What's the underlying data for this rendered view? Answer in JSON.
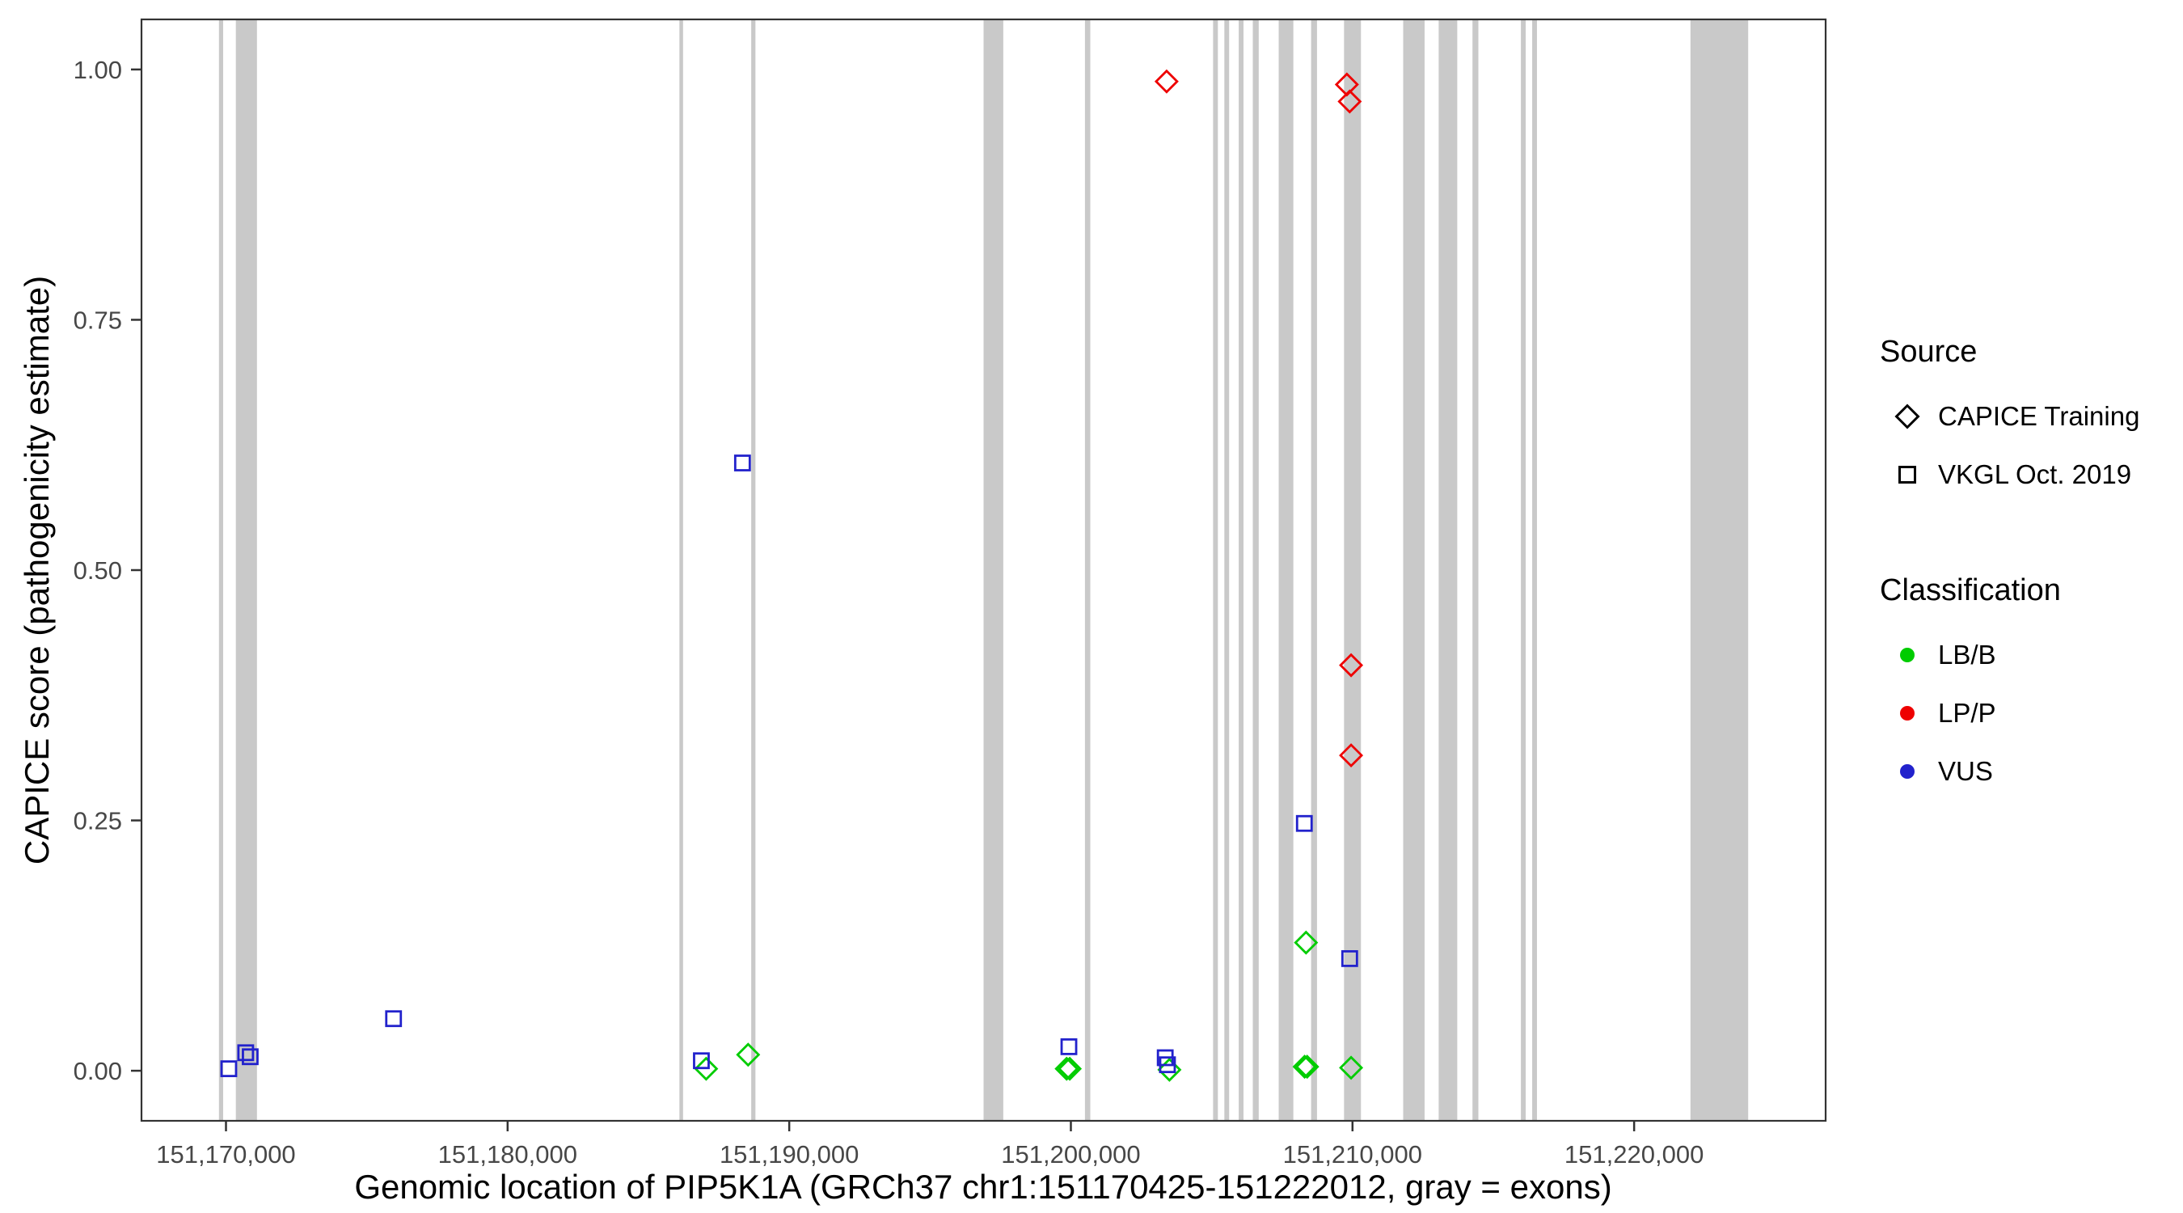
{
  "colors": {
    "LB/B": "#00CC00",
    "LP/P": "#EE0000",
    "VUS": "#2222CC",
    "exon": "#C9C9C9",
    "panel_border": "#333333",
    "tick": "#333333"
  },
  "legend": {
    "source": {
      "title": "Source",
      "items": [
        {
          "label": "CAPICE Training",
          "shape": "diamond"
        },
        {
          "label": "VKGL Oct. 2019",
          "shape": "square"
        }
      ]
    },
    "classification": {
      "title": "Classification",
      "items": [
        {
          "label": "LB/B",
          "color_key": "LB/B"
        },
        {
          "label": "LP/P",
          "color_key": "LP/P"
        },
        {
          "label": "VUS",
          "color_key": "VUS"
        }
      ]
    }
  },
  "chart_data": {
    "type": "scatter",
    "title": "",
    "xlabel": "Genomic location of PIP5K1A (GRCh37 chr1:151170425-151222012, gray = exons)",
    "ylabel": "CAPICE score (pathogenicity estimate)",
    "xlim": [
      151167000,
      151226800
    ],
    "ylim": [
      -0.05,
      1.05
    ],
    "x_ticks": [
      151170000,
      151180000,
      151190000,
      151200000,
      151210000,
      151220000
    ],
    "x_tick_labels": [
      "151,170,000",
      "151,180,000",
      "151,190,000",
      "151,200,000",
      "151,210,000",
      "151,220,000"
    ],
    "y_ticks": [
      0.0,
      0.25,
      0.5,
      0.75,
      1.0
    ],
    "y_tick_labels": [
      "0.00",
      "0.25",
      "0.50",
      "0.75",
      "1.00"
    ],
    "grid": false,
    "legend_position": "right",
    "exons": [
      [
        151169750,
        151169900
      ],
      [
        151170350,
        151171100
      ],
      [
        151186100,
        151186230
      ],
      [
        151188650,
        151188800
      ],
      [
        151196900,
        151197600
      ],
      [
        151200500,
        151200690
      ],
      [
        151205050,
        151205220
      ],
      [
        151205450,
        151205620
      ],
      [
        151205960,
        151206130
      ],
      [
        151206460,
        151206670
      ],
      [
        151207380,
        151207900
      ],
      [
        151208530,
        151208740
      ],
      [
        151209700,
        151210300
      ],
      [
        151211800,
        151212560
      ],
      [
        151213060,
        151213720
      ],
      [
        151214260,
        151214470
      ],
      [
        151215980,
        151216150
      ],
      [
        151216380,
        151216550
      ],
      [
        151222000,
        151224050
      ]
    ],
    "points": [
      {
        "x": 151203400,
        "y": 0.988,
        "classification": "LP/P",
        "source": "CAPICE Training"
      },
      {
        "x": 151209800,
        "y": 0.985,
        "classification": "LP/P",
        "source": "CAPICE Training"
      },
      {
        "x": 151209900,
        "y": 0.968,
        "classification": "LP/P",
        "source": "CAPICE Training"
      },
      {
        "x": 151209950,
        "y": 0.405,
        "classification": "LP/P",
        "source": "CAPICE Training"
      },
      {
        "x": 151209950,
        "y": 0.315,
        "classification": "LP/P",
        "source": "CAPICE Training"
      },
      {
        "x": 151208350,
        "y": 0.128,
        "classification": "LB/B",
        "source": "CAPICE Training"
      },
      {
        "x": 151188540,
        "y": 0.016,
        "classification": "LB/B",
        "source": "CAPICE Training"
      },
      {
        "x": 151187050,
        "y": 0.002,
        "classification": "LB/B",
        "source": "CAPICE Training"
      },
      {
        "x": 151199850,
        "y": 0.002,
        "classification": "LB/B",
        "source": "CAPICE Training"
      },
      {
        "x": 151199960,
        "y": 0.002,
        "classification": "LB/B",
        "source": "CAPICE Training"
      },
      {
        "x": 151203500,
        "y": 0.001,
        "classification": "LB/B",
        "source": "CAPICE Training"
      },
      {
        "x": 151208300,
        "y": 0.004,
        "classification": "LB/B",
        "source": "CAPICE Training"
      },
      {
        "x": 151208390,
        "y": 0.004,
        "classification": "LB/B",
        "source": "CAPICE Training"
      },
      {
        "x": 151209950,
        "y": 0.003,
        "classification": "LB/B",
        "source": "CAPICE Training"
      },
      {
        "x": 151188340,
        "y": 0.607,
        "classification": "VUS",
        "source": "VKGL Oct. 2019"
      },
      {
        "x": 151208290,
        "y": 0.247,
        "classification": "VUS",
        "source": "VKGL Oct. 2019"
      },
      {
        "x": 151209900,
        "y": 0.112,
        "classification": "VUS",
        "source": "VKGL Oct. 2019"
      },
      {
        "x": 151175950,
        "y": 0.052,
        "classification": "VUS",
        "source": "VKGL Oct. 2019"
      },
      {
        "x": 151199930,
        "y": 0.024,
        "classification": "VUS",
        "source": "VKGL Oct. 2019"
      },
      {
        "x": 151170700,
        "y": 0.018,
        "classification": "VUS",
        "source": "VKGL Oct. 2019"
      },
      {
        "x": 151170860,
        "y": 0.014,
        "classification": "VUS",
        "source": "VKGL Oct. 2019"
      },
      {
        "x": 151170100,
        "y": 0.002,
        "classification": "VUS",
        "source": "VKGL Oct. 2019"
      },
      {
        "x": 151186880,
        "y": 0.01,
        "classification": "VUS",
        "source": "VKGL Oct. 2019"
      },
      {
        "x": 151203350,
        "y": 0.013,
        "classification": "VUS",
        "source": "VKGL Oct. 2019"
      },
      {
        "x": 151203430,
        "y": 0.006,
        "classification": "VUS",
        "source": "VKGL Oct. 2019"
      }
    ]
  }
}
